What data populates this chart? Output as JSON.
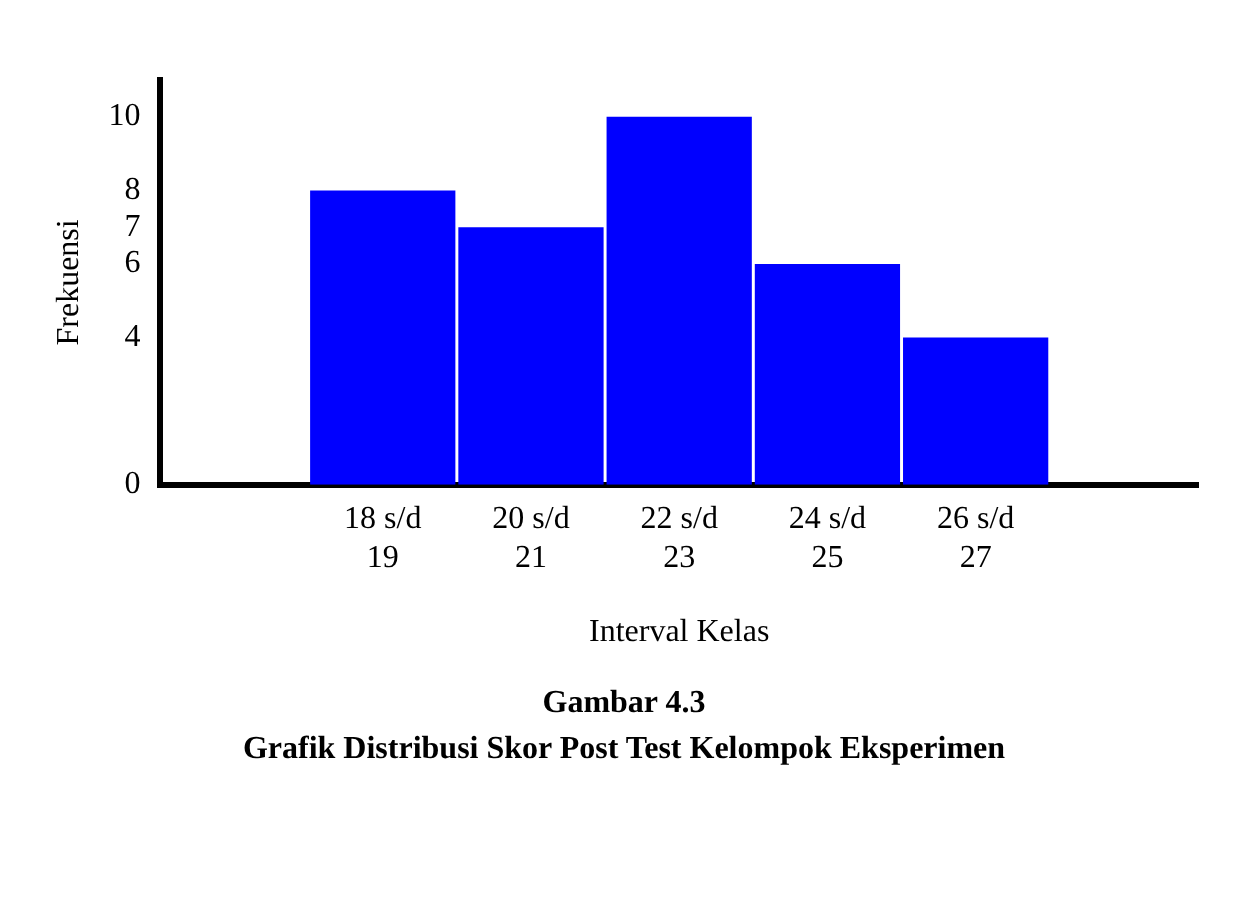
{
  "chart_data": {
    "type": "bar",
    "title": "Gambar 4.3",
    "subtitle": "Grafik Distribusi Skor Post Test Kelompok Eksperimen",
    "xlabel": "Interval Kelas",
    "ylabel": "Frekuensi",
    "categories": [
      null,
      "18 s/d 19",
      "20 s/d 21",
      "22 s/d 23",
      "24 s/d 25",
      "26 s/d 27",
      null
    ],
    "values": [
      null,
      8,
      7,
      10,
      6,
      4,
      null
    ],
    "color": "#0000ff",
    "ylim": [
      0,
      11
    ],
    "yticks": [
      0,
      4,
      6,
      7,
      8,
      10
    ],
    "grid": false,
    "legend": false
  }
}
